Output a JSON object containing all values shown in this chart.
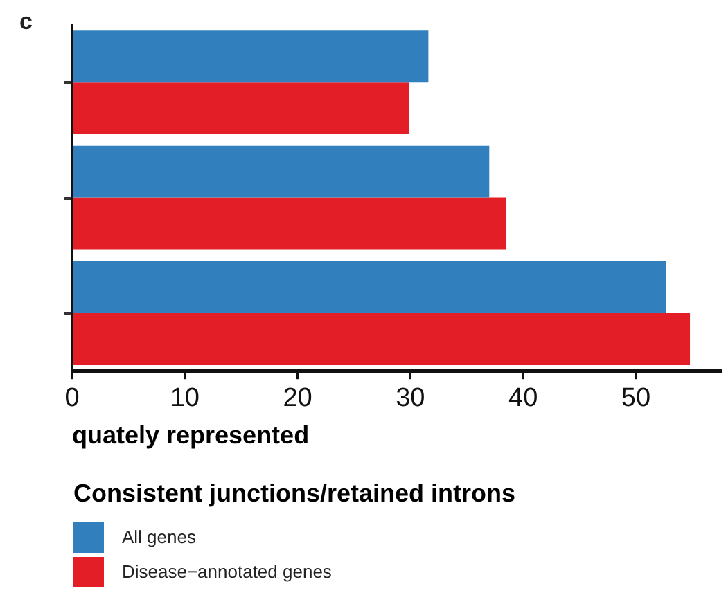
{
  "chart_data": {
    "type": "bar",
    "orientation": "horizontal",
    "categories": [
      null,
      null,
      null
    ],
    "series": [
      {
        "name": "All genes",
        "color": "#3180bd",
        "values": [
          31.6,
          37.0,
          52.7
        ]
      },
      {
        "name": "Disease−annotated genes",
        "color": "#e31e26",
        "values": [
          29.9,
          38.5,
          54.8
        ]
      }
    ],
    "xlim": [
      0,
      57.5
    ],
    "xticks": [
      0,
      10,
      20,
      30,
      40,
      50
    ],
    "xlabel": "quately represented",
    "legend": "bottom",
    "legend_title": "Consistent junctions/retained introns",
    "grid": false,
    "annotations": [
      "c"
    ]
  }
}
